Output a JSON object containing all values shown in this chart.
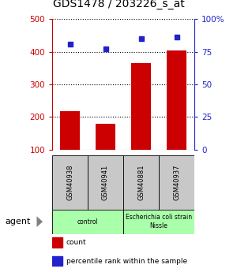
{
  "title": "GDS1478 / 203226_s_at",
  "samples": [
    "GSM40938",
    "GSM40941",
    "GSM40881",
    "GSM40937"
  ],
  "counts": [
    218,
    178,
    365,
    403
  ],
  "percentiles": [
    81,
    77,
    85,
    86
  ],
  "ylim_left": [
    100,
    500
  ],
  "ylim_right": [
    0,
    100
  ],
  "yticks_left": [
    100,
    200,
    300,
    400,
    500
  ],
  "yticks_right": [
    0,
    25,
    50,
    75,
    100
  ],
  "ytick_labels_right": [
    "0",
    "25",
    "50",
    "75",
    "100%"
  ],
  "bar_color": "#cc0000",
  "dot_color": "#2222cc",
  "grid_color": "#000000",
  "bar_width": 0.55,
  "sample_box_color": "#c8c8c8",
  "group_color": "#aaffaa",
  "agent_label": "agent",
  "legend_items": [
    {
      "color": "#cc0000",
      "label": "count"
    },
    {
      "color": "#2222cc",
      "label": "percentile rank within the sample"
    }
  ],
  "title_fontsize": 10,
  "axis_label_color_left": "#cc0000",
  "axis_label_color_right": "#2222cc",
  "groups": [
    {
      "label": "control",
      "cols": [
        0,
        1
      ]
    },
    {
      "label": "Escherichia coli strain\nNissle",
      "cols": [
        2,
        3
      ]
    }
  ]
}
